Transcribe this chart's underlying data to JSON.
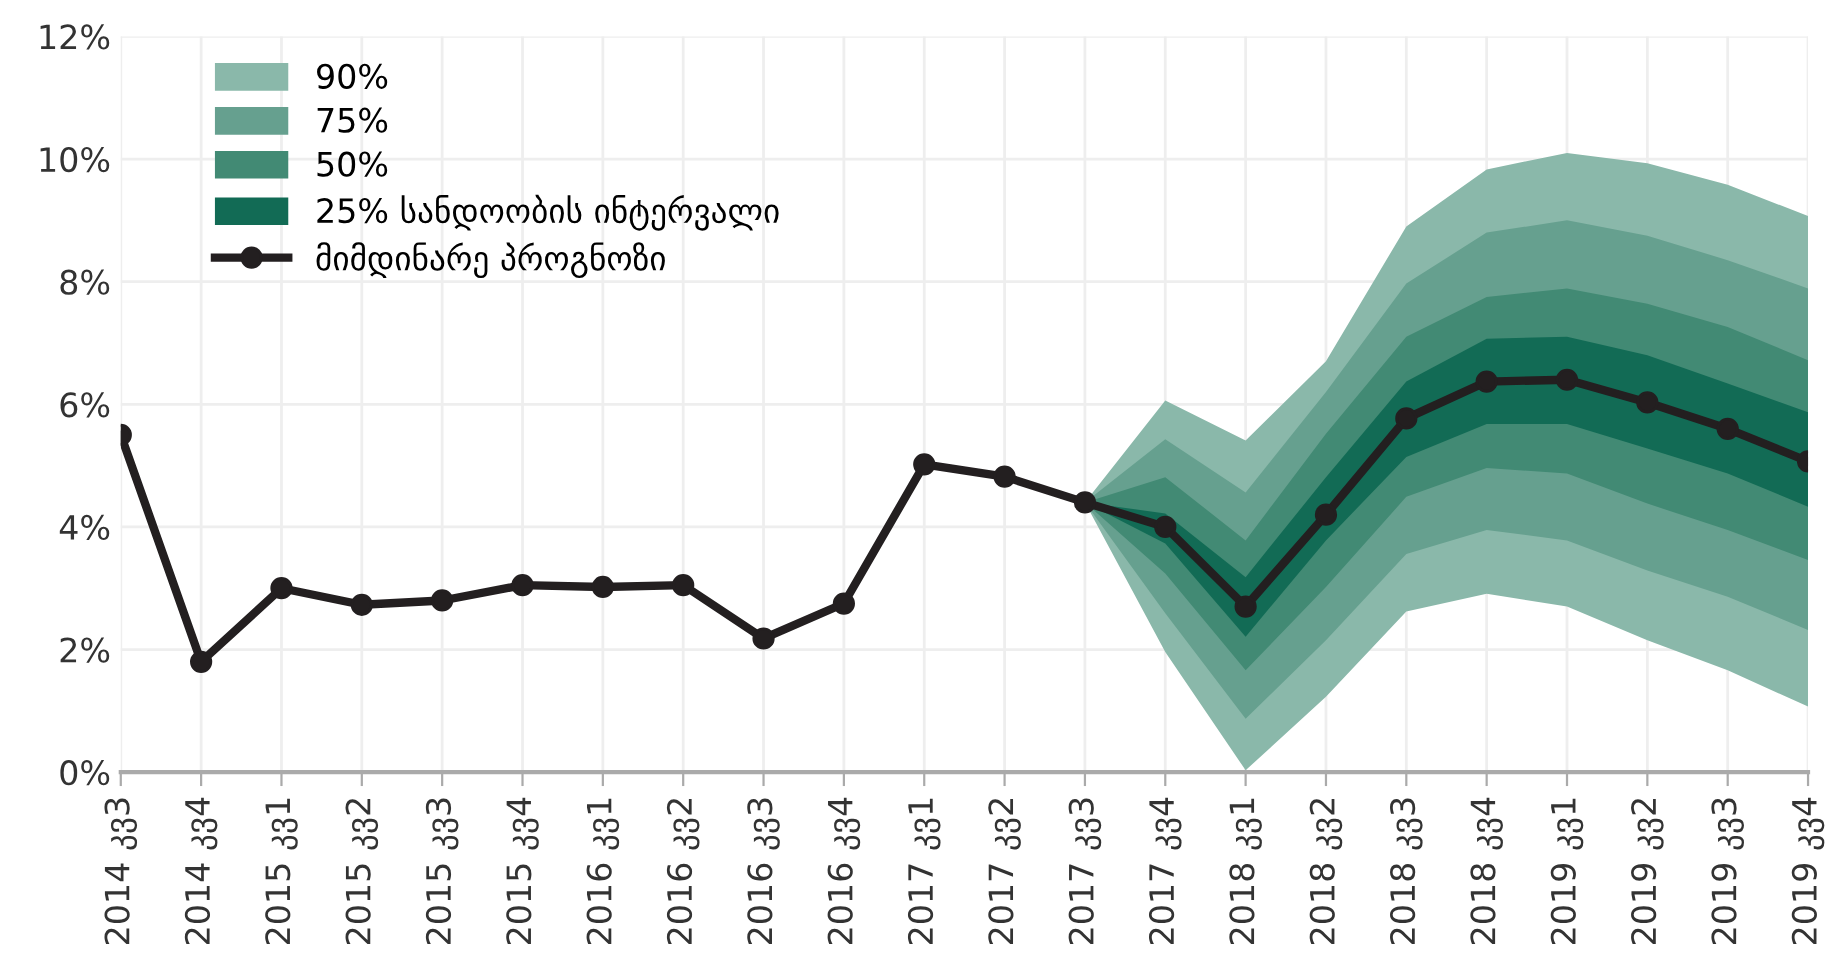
{
  "chart_data": {
    "type": "line",
    "categories": [
      "2014 კვ3",
      "2014 კვ4",
      "2015 კვ1",
      "2015 კვ2",
      "2015 კვ3",
      "2015 კვ4",
      "2016 კვ1",
      "2016 კვ2",
      "2016 კვ3",
      "2016 კვ4",
      "2017 კვ1",
      "2017 კვ2",
      "2017 კვ3",
      "2017 კვ4",
      "2018 კვ1",
      "2018 კვ2",
      "2018 კვ3",
      "2018 კვ4",
      "2019 კვ1",
      "2019 კვ2",
      "2019 კვ3",
      "2019 კვ4"
    ],
    "series": [
      {
        "type": "area",
        "name": "90%",
        "color": "#8ab8aa",
        "values": [
          null,
          null,
          null,
          null,
          null,
          null,
          null,
          null,
          null,
          null,
          null,
          null,
          null,
          null,
          null,
          null,
          null,
          null,
          null,
          null,
          null,
          null
        ],
        "lower": [
          null,
          null,
          null,
          null,
          null,
          null,
          null,
          null,
          null,
          null,
          null,
          null,
          4.4,
          1.96,
          0.03,
          1.23,
          2.62,
          2.91,
          2.7,
          2.15,
          1.66,
          1.07
        ],
        "upper": [
          null,
          null,
          null,
          null,
          null,
          null,
          null,
          null,
          null,
          null,
          null,
          null,
          4.4,
          6.06,
          5.41,
          6.7,
          8.9,
          9.83,
          10.1,
          9.93,
          9.58,
          9.07
        ]
      },
      {
        "type": "area",
        "name": "75%",
        "color": "#66a08f",
        "values": [
          null,
          null,
          null,
          null,
          null,
          null,
          null,
          null,
          null,
          null,
          null,
          null,
          null,
          null,
          null,
          null,
          null,
          null,
          null,
          null,
          null,
          null
        ],
        "lower": [
          null,
          null,
          null,
          null,
          null,
          null,
          null,
          null,
          null,
          null,
          null,
          null,
          4.4,
          2.59,
          0.87,
          2.15,
          3.56,
          3.95,
          3.78,
          3.29,
          2.86,
          2.32
        ],
        "upper": [
          null,
          null,
          null,
          null,
          null,
          null,
          null,
          null,
          null,
          null,
          null,
          null,
          4.4,
          5.43,
          4.56,
          6.2,
          7.97,
          8.8,
          9.0,
          8.75,
          8.35,
          7.89
        ]
      },
      {
        "type": "area",
        "name": "50%",
        "color": "#428a74",
        "values": [
          null,
          null,
          null,
          null,
          null,
          null,
          null,
          null,
          null,
          null,
          null,
          null,
          null,
          null,
          null,
          null,
          null,
          null,
          null,
          null,
          null,
          null
        ],
        "lower": [
          null,
          null,
          null,
          null,
          null,
          null,
          null,
          null,
          null,
          null,
          null,
          null,
          4.4,
          3.24,
          1.66,
          3.02,
          4.49,
          4.96,
          4.87,
          4.38,
          3.95,
          3.46
        ],
        "upper": [
          null,
          null,
          null,
          null,
          null,
          null,
          null,
          null,
          null,
          null,
          null,
          null,
          4.4,
          4.81,
          3.78,
          5.52,
          7.1,
          7.75,
          7.89,
          7.64,
          7.26,
          6.72
        ]
      },
      {
        "type": "area",
        "name": "25% სანდოობის ინტერვალი",
        "color": "#126b55",
        "values": [
          null,
          null,
          null,
          null,
          null,
          null,
          null,
          null,
          null,
          null,
          null,
          null,
          null,
          null,
          null,
          null,
          null,
          null,
          null,
          null,
          null,
          null
        ],
        "lower": [
          null,
          null,
          null,
          null,
          null,
          null,
          null,
          null,
          null,
          null,
          null,
          null,
          4.4,
          3.73,
          2.21,
          3.78,
          5.14,
          5.68,
          5.68,
          5.28,
          4.87,
          4.33
        ],
        "upper": [
          null,
          null,
          null,
          null,
          null,
          null,
          null,
          null,
          null,
          null,
          null,
          null,
          4.4,
          4.22,
          3.18,
          4.81,
          6.37,
          7.07,
          7.1,
          6.8,
          6.34,
          5.87
        ]
      },
      {
        "name": "მიმდინარე პროგნოზი",
        "color": "#231f20",
        "marker": "circle",
        "values": [
          5.5,
          1.8,
          3.0,
          2.73,
          2.8,
          3.05,
          3.02,
          3.05,
          2.18,
          2.75,
          5.02,
          4.82,
          4.4,
          4.0,
          2.7,
          4.2,
          5.77,
          6.37,
          6.4,
          6.03,
          5.6,
          5.07
        ]
      }
    ],
    "ylim": [
      0,
      12
    ],
    "yticks": [
      {
        "value": 0,
        "label": "0%"
      },
      {
        "value": 2,
        "label": "2%"
      },
      {
        "value": 4,
        "label": "4%"
      },
      {
        "value": 6,
        "label": "6%"
      },
      {
        "value": 8,
        "label": "8%"
      },
      {
        "value": 10,
        "label": "10%"
      },
      {
        "value": 12,
        "label": "12%"
      }
    ],
    "grid": true,
    "legend": "top left",
    "line_style": "solid"
  }
}
